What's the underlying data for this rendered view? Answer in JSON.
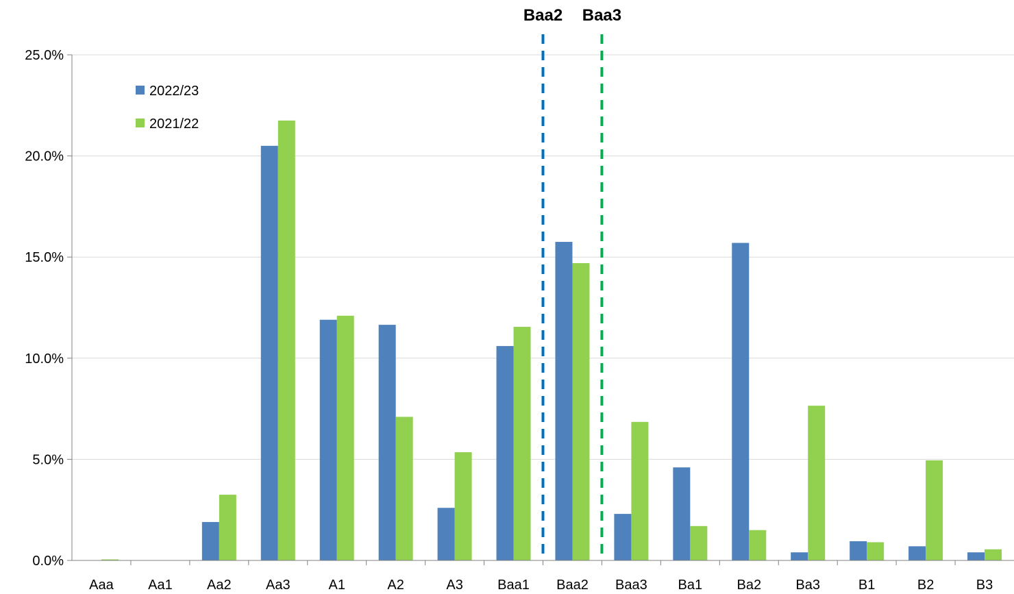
{
  "chart_data": {
    "type": "bar",
    "categories": [
      "Aaa",
      "Aa1",
      "Aa2",
      "Aa3",
      "A1",
      "A2",
      "A3",
      "Baa1",
      "Baa2",
      "Baa3",
      "Ba1",
      "Ba2",
      "Ba3",
      "B1",
      "B2",
      "B3"
    ],
    "series": [
      {
        "name": "2022/23",
        "color": "#4F81BD",
        "values": [
          0.0,
          0.0,
          1.9,
          20.5,
          11.9,
          11.65,
          2.6,
          10.6,
          15.75,
          2.3,
          4.6,
          15.7,
          0.4,
          0.95,
          0.7,
          0.4
        ]
      },
      {
        "name": "2021/22",
        "color": "#92D050",
        "values": [
          0.05,
          0.0,
          3.25,
          21.75,
          12.1,
          7.1,
          5.35,
          11.55,
          14.7,
          6.85,
          1.7,
          1.5,
          7.65,
          0.9,
          4.95,
          0.55
        ]
      }
    ],
    "y_ticks": [
      "0.0%",
      "5.0%",
      "10.0%",
      "15.0%",
      "20.0%",
      "25.0%"
    ],
    "ylim": [
      0,
      25
    ],
    "grid": true,
    "legend_position": "top-left",
    "reference_lines": [
      {
        "label": "Baa2",
        "color": "#0070C0",
        "boundary_after": "Baa1"
      },
      {
        "label": "Baa3",
        "color": "#00B050",
        "boundary_after": "Baa2"
      }
    ],
    "title": "",
    "xlabel": "",
    "ylabel": ""
  }
}
